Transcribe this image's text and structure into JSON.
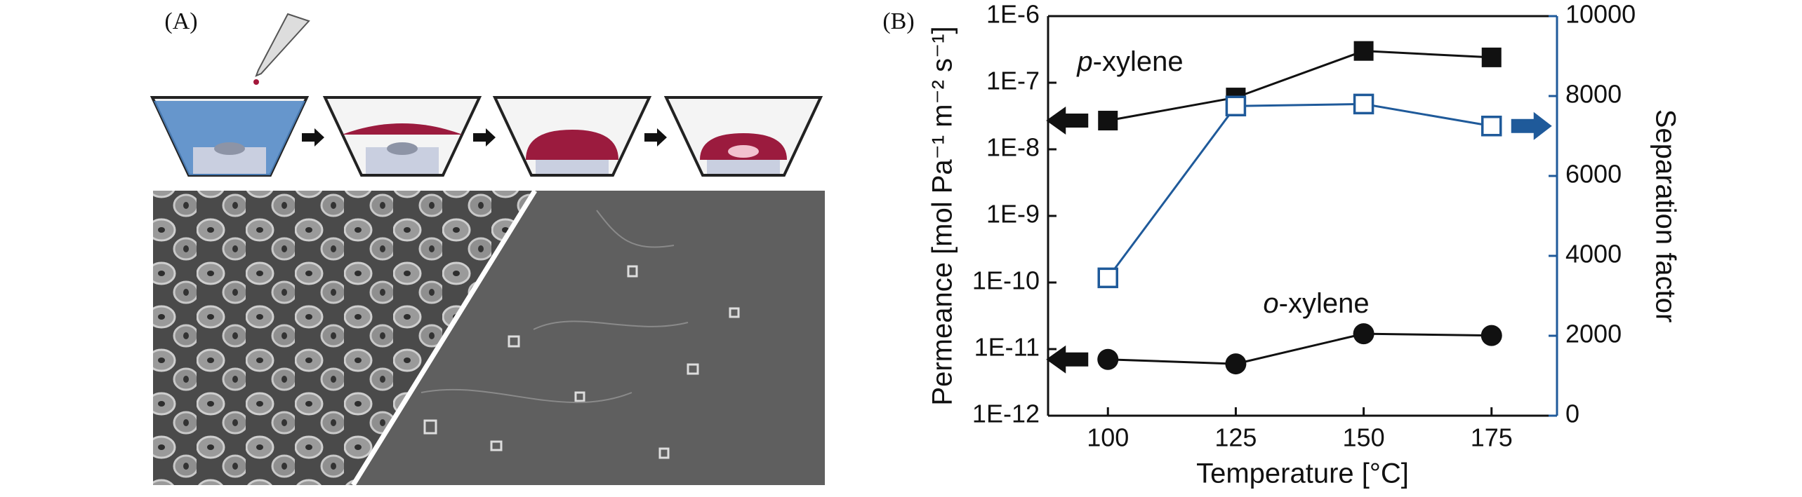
{
  "panel_a": {
    "label": "(A)"
  },
  "chart_data": {
    "type": "line",
    "panel_label": "(B)",
    "x_label": "Temperature [°C]",
    "y_label": "Permeance [mol Pa⁻¹ m⁻² s⁻¹]",
    "y2_label": "Separation factor",
    "x": [
      100,
      125,
      150,
      175
    ],
    "xlim": [
      88.3,
      187.8
    ],
    "xticks": [
      100,
      125,
      150,
      175
    ],
    "ylog": true,
    "ylim": [
      1e-12,
      1e-06
    ],
    "yticks": [
      {
        "value": 1e-12,
        "label": "1E-12"
      },
      {
        "value": 1e-11,
        "label": "1E-11"
      },
      {
        "value": 1e-10,
        "label": "1E-10"
      },
      {
        "value": 1e-09,
        "label": "1E-9"
      },
      {
        "value": 1e-08,
        "label": "1E-8"
      },
      {
        "value": 1e-07,
        "label": "1E-7"
      },
      {
        "value": 1e-06,
        "label": "1E-6"
      }
    ],
    "y2lim": [
      0,
      10000
    ],
    "y2ticks": [
      0,
      2000,
      4000,
      6000,
      8000,
      10000
    ],
    "y2color": "#1f5a9a",
    "series": [
      {
        "name": "p-xylene",
        "color": "#111111",
        "marker": "filled-square",
        "values": [
          2.7e-08,
          6e-08,
          3e-07,
          2.4e-07
        ]
      },
      {
        "name": "o-xylene",
        "color": "#111111",
        "marker": "filled-circle",
        "values": [
          7e-12,
          6e-12,
          1.7e-11,
          1.6e-11
        ]
      },
      {
        "axis": "y2",
        "color": "#1f5a9a",
        "marker": "open-square",
        "values": [
          3450,
          7750,
          7800,
          7250
        ]
      }
    ]
  }
}
